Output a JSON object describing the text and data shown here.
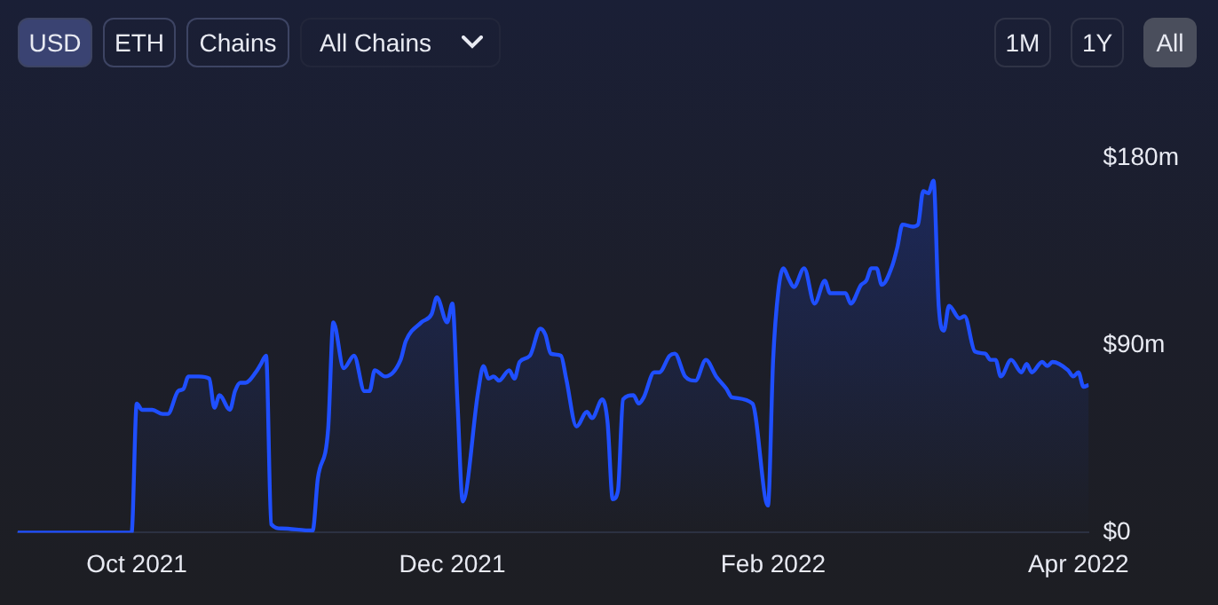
{
  "chart_data": {
    "type": "area",
    "x": [
      "2021-09-08",
      "2021-09-30",
      "2021-10-01",
      "2021-10-02",
      "2021-10-04",
      "2021-10-06",
      "2021-10-07",
      "2021-10-09",
      "2021-10-10",
      "2021-10-11",
      "2021-10-13",
      "2021-10-15",
      "2021-10-16",
      "2021-10-17",
      "2021-10-19",
      "2021-10-20",
      "2021-10-21",
      "2021-10-22",
      "2021-10-24",
      "2021-10-25",
      "2021-10-26",
      "2021-10-27",
      "2021-10-29",
      "2021-11-04",
      "2021-11-05",
      "2021-11-07",
      "2021-11-08",
      "2021-11-10",
      "2021-11-12",
      "2021-11-14",
      "2021-11-15",
      "2021-11-16",
      "2021-11-18",
      "2021-11-21",
      "2021-11-22",
      "2021-11-25",
      "2021-11-27",
      "2021-11-28",
      "2021-11-30",
      "2021-12-01",
      "2021-12-02",
      "2021-12-03",
      "2021-12-06",
      "2021-12-07",
      "2021-12-08",
      "2021-12-09",
      "2021-12-10",
      "2021-12-12",
      "2021-12-13",
      "2021-12-14",
      "2021-12-16",
      "2021-12-18",
      "2021-12-19",
      "2021-12-20",
      "2021-12-22",
      "2021-12-23",
      "2021-12-25",
      "2021-12-27",
      "2021-12-28",
      "2021-12-30",
      "2021-12-31",
      "2022-01-01",
      "2022-01-02",
      "2022-01-03",
      "2022-01-05",
      "2022-01-06",
      "2022-01-07",
      "2022-01-09",
      "2022-01-10",
      "2022-01-12",
      "2022-01-13",
      "2022-01-15",
      "2022-01-17",
      "2022-01-19",
      "2022-01-21",
      "2022-01-23",
      "2022-01-24",
      "2022-01-28",
      "2022-01-31",
      "2022-02-01",
      "2022-02-02",
      "2022-02-03",
      "2022-02-04",
      "2022-02-05",
      "2022-02-07",
      "2022-02-09",
      "2022-02-11",
      "2022-02-12",
      "2022-02-15",
      "2022-02-16",
      "2022-02-18",
      "2022-02-19",
      "2022-02-20",
      "2022-02-21",
      "2022-02-22",
      "2022-02-24",
      "2022-02-25",
      "2022-02-26",
      "2022-02-28",
      "2022-03-01",
      "2022-03-02",
      "2022-03-03",
      "2022-03-04",
      "2022-03-05",
      "2022-03-06",
      "2022-03-07",
      "2022-03-09",
      "2022-03-10",
      "2022-03-12",
      "2022-03-14",
      "2022-03-15",
      "2022-03-16",
      "2022-03-17",
      "2022-03-19",
      "2022-03-21",
      "2022-03-22",
      "2022-03-23",
      "2022-03-25",
      "2022-03-26",
      "2022-03-27",
      "2022-03-30",
      "2022-03-31",
      "2022-04-01",
      "2022-04-02",
      "2022-04-03"
    ],
    "series": [
      {
        "color": "#1f4fff",
        "values": [
          0,
          0,
          62,
          59,
          59,
          57,
          57,
          68,
          69,
          75,
          75,
          74,
          60,
          66,
          59,
          68,
          72,
          72,
          77,
          81,
          85,
          4,
          2,
          1,
          26,
          50,
          101,
          79,
          85,
          68,
          68,
          78,
          75,
          83,
          92,
          101,
          105,
          113,
          101,
          110,
          62,
          15,
          68,
          80,
          74,
          75,
          73,
          78,
          74,
          82,
          85,
          98,
          95,
          86,
          85,
          74,
          51,
          58,
          55,
          64,
          53,
          16,
          20,
          64,
          66,
          62,
          65,
          77,
          77,
          85,
          86,
          75,
          73,
          83,
          75,
          69,
          65,
          62,
          13,
          83,
          116,
          127,
          122,
          118,
          127,
          110,
          121,
          115,
          115,
          110,
          119,
          121,
          127,
          127,
          119,
          128,
          137,
          148,
          147,
          148,
          164,
          163,
          169,
          109,
          97,
          109,
          103,
          104,
          87,
          86,
          83,
          83,
          75,
          83,
          77,
          81,
          77,
          82,
          80,
          82,
          78,
          75,
          77,
          70,
          71
        ]
      }
    ],
    "annotations": [
      "USD",
      "ETH",
      "Chains",
      "All Chains",
      "1M",
      "1Y",
      "All"
    ],
    "xlim": [
      "2021-09-08",
      "2022-04-03"
    ],
    "xticks": [
      {
        "value": "2021-10-01",
        "label": "Oct 2021"
      },
      {
        "value": "2021-12-01",
        "label": "Dec 2021"
      },
      {
        "value": "2022-02-01",
        "label": "Feb 2022"
      },
      {
        "value": "2022-04-01",
        "label": "Apr 2022"
      }
    ],
    "ylim": [
      0,
      180
    ],
    "yticks": [
      {
        "value": 0,
        "label": "$0"
      },
      {
        "value": 90,
        "label": "$90m"
      },
      {
        "value": 180,
        "label": "$180m"
      }
    ],
    "grid": false,
    "legend": false,
    "marker": "none",
    "line_style": "solid"
  }
}
